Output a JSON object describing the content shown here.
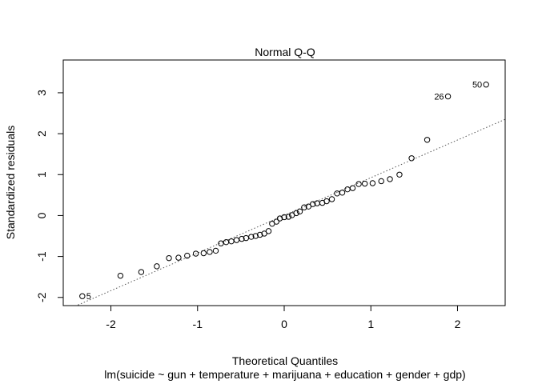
{
  "chart_data": {
    "type": "scatter",
    "title": "Normal Q-Q",
    "xlabel": "Theoretical Quantiles",
    "subtitle": "lm(suicide ~ gun + temperature + marijuana + education + gender + gdp)",
    "ylabel": "Standardized residuals",
    "xlim": [
      -2.55,
      2.55
    ],
    "ylim": [
      -2.2,
      3.8
    ],
    "xticks": [
      -2,
      -1,
      0,
      1,
      2
    ],
    "xtick_labels": [
      "-2",
      "-1",
      "0",
      "1",
      "2"
    ],
    "yticks": [
      -2,
      -1,
      0,
      1,
      2,
      3
    ],
    "ytick_labels": [
      "-2",
      "-1",
      "0",
      "1",
      "2",
      "3"
    ],
    "grid": false,
    "points": [
      {
        "x": -2.33,
        "y": -1.97
      },
      {
        "x": -1.89,
        "y": -1.47
      },
      {
        "x": -1.65,
        "y": -1.38
      },
      {
        "x": -1.47,
        "y": -1.24
      },
      {
        "x": -1.33,
        "y": -1.04
      },
      {
        "x": -1.22,
        "y": -1.03
      },
      {
        "x": -1.12,
        "y": -0.98
      },
      {
        "x": -1.02,
        "y": -0.93
      },
      {
        "x": -0.93,
        "y": -0.92
      },
      {
        "x": -0.86,
        "y": -0.89
      },
      {
        "x": -0.79,
        "y": -0.86
      },
      {
        "x": -0.73,
        "y": -0.68
      },
      {
        "x": -0.67,
        "y": -0.65
      },
      {
        "x": -0.61,
        "y": -0.63
      },
      {
        "x": -0.55,
        "y": -0.6
      },
      {
        "x": -0.49,
        "y": -0.57
      },
      {
        "x": -0.44,
        "y": -0.55
      },
      {
        "x": -0.38,
        "y": -0.52
      },
      {
        "x": -0.33,
        "y": -0.5
      },
      {
        "x": -0.28,
        "y": -0.47
      },
      {
        "x": -0.23,
        "y": -0.44
      },
      {
        "x": -0.18,
        "y": -0.38
      },
      {
        "x": -0.14,
        "y": -0.2
      },
      {
        "x": -0.09,
        "y": -0.15
      },
      {
        "x": -0.05,
        "y": -0.07
      },
      {
        "x": 0.0,
        "y": -0.04
      },
      {
        "x": 0.05,
        "y": -0.03
      },
      {
        "x": 0.09,
        "y": 0.01
      },
      {
        "x": 0.14,
        "y": 0.06
      },
      {
        "x": 0.18,
        "y": 0.1
      },
      {
        "x": 0.23,
        "y": 0.2
      },
      {
        "x": 0.28,
        "y": 0.22
      },
      {
        "x": 0.33,
        "y": 0.28
      },
      {
        "x": 0.38,
        "y": 0.3
      },
      {
        "x": 0.44,
        "y": 0.31
      },
      {
        "x": 0.49,
        "y": 0.35
      },
      {
        "x": 0.55,
        "y": 0.4
      },
      {
        "x": 0.61,
        "y": 0.54
      },
      {
        "x": 0.67,
        "y": 0.56
      },
      {
        "x": 0.73,
        "y": 0.64
      },
      {
        "x": 0.79,
        "y": 0.67
      },
      {
        "x": 0.86,
        "y": 0.77
      },
      {
        "x": 0.93,
        "y": 0.78
      },
      {
        "x": 1.02,
        "y": 0.79
      },
      {
        "x": 1.12,
        "y": 0.84
      },
      {
        "x": 1.22,
        "y": 0.89
      },
      {
        "x": 1.33,
        "y": 1.0
      },
      {
        "x": 1.47,
        "y": 1.4
      },
      {
        "x": 1.65,
        "y": 1.85
      },
      {
        "x": 1.89,
        "y": 2.91
      },
      {
        "x": 2.33,
        "y": 3.2
      }
    ],
    "point_labels": [
      {
        "text": "5",
        "x": -2.33,
        "y": -1.97,
        "side": "right"
      },
      {
        "text": "26",
        "x": 1.89,
        "y": 2.91,
        "side": "left"
      },
      {
        "text": "50",
        "x": 2.33,
        "y": 3.2,
        "side": "left"
      }
    ],
    "reference_line": {
      "intercept": 0.005,
      "slope": 0.92,
      "style": "dotted"
    }
  }
}
